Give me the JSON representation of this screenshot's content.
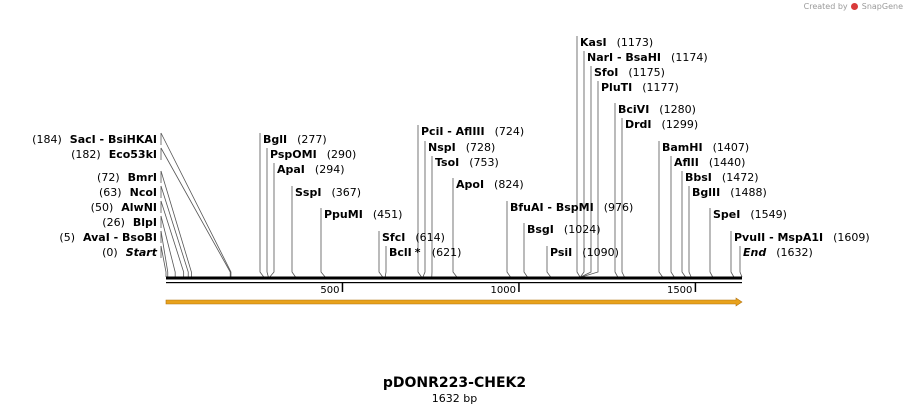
{
  "watermark": "Created by SnapGene",
  "watermark_prefix": "Created by",
  "watermark_brand": "SnapGene",
  "plasmid": {
    "name": "pDONR223-CHEK2",
    "length_label": "1632 bp",
    "length": 1632
  },
  "ticks": [
    {
      "pos": 500,
      "label": "500"
    },
    {
      "pos": 1000,
      "label": "1000"
    },
    {
      "pos": 1500,
      "label": "1500"
    }
  ],
  "features": [
    {
      "name": "ORF arrow",
      "start": 1,
      "end": 1632,
      "color": "#e8a21c"
    }
  ],
  "sites": [
    {
      "side": "L",
      "pos": 0,
      "posLabel": "(0)",
      "names": [
        "Start"
      ],
      "italic": true
    },
    {
      "side": "L",
      "pos": 5,
      "posLabel": "(5)",
      "names": [
        "AvaI",
        "BsoBI"
      ]
    },
    {
      "side": "L",
      "pos": 26,
      "posLabel": "(26)",
      "names": [
        "BlpI"
      ]
    },
    {
      "side": "L",
      "pos": 50,
      "posLabel": "(50)",
      "names": [
        "AlwNI"
      ]
    },
    {
      "side": "L",
      "pos": 63,
      "posLabel": "(63)",
      "names": [
        "NcoI"
      ]
    },
    {
      "side": "L",
      "pos": 72,
      "posLabel": "(72)",
      "names": [
        "BmrI"
      ]
    },
    {
      "side": "L",
      "pos": 182,
      "posLabel": "(182)",
      "names": [
        "Eco53kI"
      ]
    },
    {
      "side": "L",
      "pos": 184,
      "posLabel": "(184)",
      "names": [
        "SacI",
        "BsiHKAI"
      ]
    },
    {
      "side": "R",
      "pos": 277,
      "posLabel": "(277)",
      "names": [
        "BglI"
      ]
    },
    {
      "side": "R",
      "pos": 290,
      "posLabel": "(290)",
      "names": [
        "PspOMI"
      ]
    },
    {
      "side": "R",
      "pos": 294,
      "posLabel": "(294)",
      "names": [
        "ApaI"
      ]
    },
    {
      "side": "R",
      "pos": 367,
      "posLabel": "(367)",
      "names": [
        "SspI"
      ]
    },
    {
      "side": "R",
      "pos": 451,
      "posLabel": "(451)",
      "names": [
        "PpuMI"
      ]
    },
    {
      "side": "R",
      "pos": 614,
      "posLabel": "(614)",
      "names": [
        "SfcI"
      ]
    },
    {
      "side": "R",
      "pos": 621,
      "posLabel": "(621)",
      "names": [
        "BclI"
      ],
      "star": "*"
    },
    {
      "side": "R",
      "pos": 724,
      "posLabel": "(724)",
      "names": [
        "PciI",
        "AflIII"
      ]
    },
    {
      "side": "R",
      "pos": 728,
      "posLabel": "(728)",
      "names": [
        "NspI"
      ]
    },
    {
      "side": "R",
      "pos": 753,
      "posLabel": "(753)",
      "names": [
        "TsoI"
      ]
    },
    {
      "side": "R",
      "pos": 824,
      "posLabel": "(824)",
      "names": [
        "ApoI"
      ]
    },
    {
      "side": "R",
      "pos": 976,
      "posLabel": "(976)",
      "names": [
        "BfuAI",
        "BspMI"
      ]
    },
    {
      "side": "R",
      "pos": 1024,
      "posLabel": "(1024)",
      "names": [
        "BsgI"
      ]
    },
    {
      "side": "R",
      "pos": 1090,
      "posLabel": "(1090)",
      "names": [
        "PsiI"
      ]
    },
    {
      "side": "R",
      "pos": 1173,
      "posLabel": "(1173)",
      "names": [
        "KasI"
      ]
    },
    {
      "side": "R",
      "pos": 1174,
      "posLabel": "(1174)",
      "names": [
        "NarI",
        "BsaHI"
      ]
    },
    {
      "side": "R",
      "pos": 1175,
      "posLabel": "(1175)",
      "names": [
        "SfoI"
      ]
    },
    {
      "side": "R",
      "pos": 1177,
      "posLabel": "(1177)",
      "names": [
        "PluTI"
      ]
    },
    {
      "side": "R",
      "pos": 1280,
      "posLabel": "(1280)",
      "names": [
        "BciVI"
      ]
    },
    {
      "side": "R",
      "pos": 1299,
      "posLabel": "(1299)",
      "names": [
        "DrdI"
      ]
    },
    {
      "side": "R",
      "pos": 1407,
      "posLabel": "(1407)",
      "names": [
        "BamHI"
      ]
    },
    {
      "side": "R",
      "pos": 1440,
      "posLabel": "(1440)",
      "names": [
        "AflII"
      ]
    },
    {
      "side": "R",
      "pos": 1472,
      "posLabel": "(1472)",
      "names": [
        "BbsI"
      ]
    },
    {
      "side": "R",
      "pos": 1488,
      "posLabel": "(1488)",
      "names": [
        "BglII"
      ]
    },
    {
      "side": "R",
      "pos": 1549,
      "posLabel": "(1549)",
      "names": [
        "SpeI"
      ]
    },
    {
      "side": "R",
      "pos": 1609,
      "posLabel": "(1609)",
      "names": [
        "PvuII",
        "MspA1I"
      ]
    },
    {
      "side": "R",
      "pos": 1632,
      "posLabel": "(1632)",
      "names": [
        "End"
      ],
      "italic": true
    }
  ]
}
